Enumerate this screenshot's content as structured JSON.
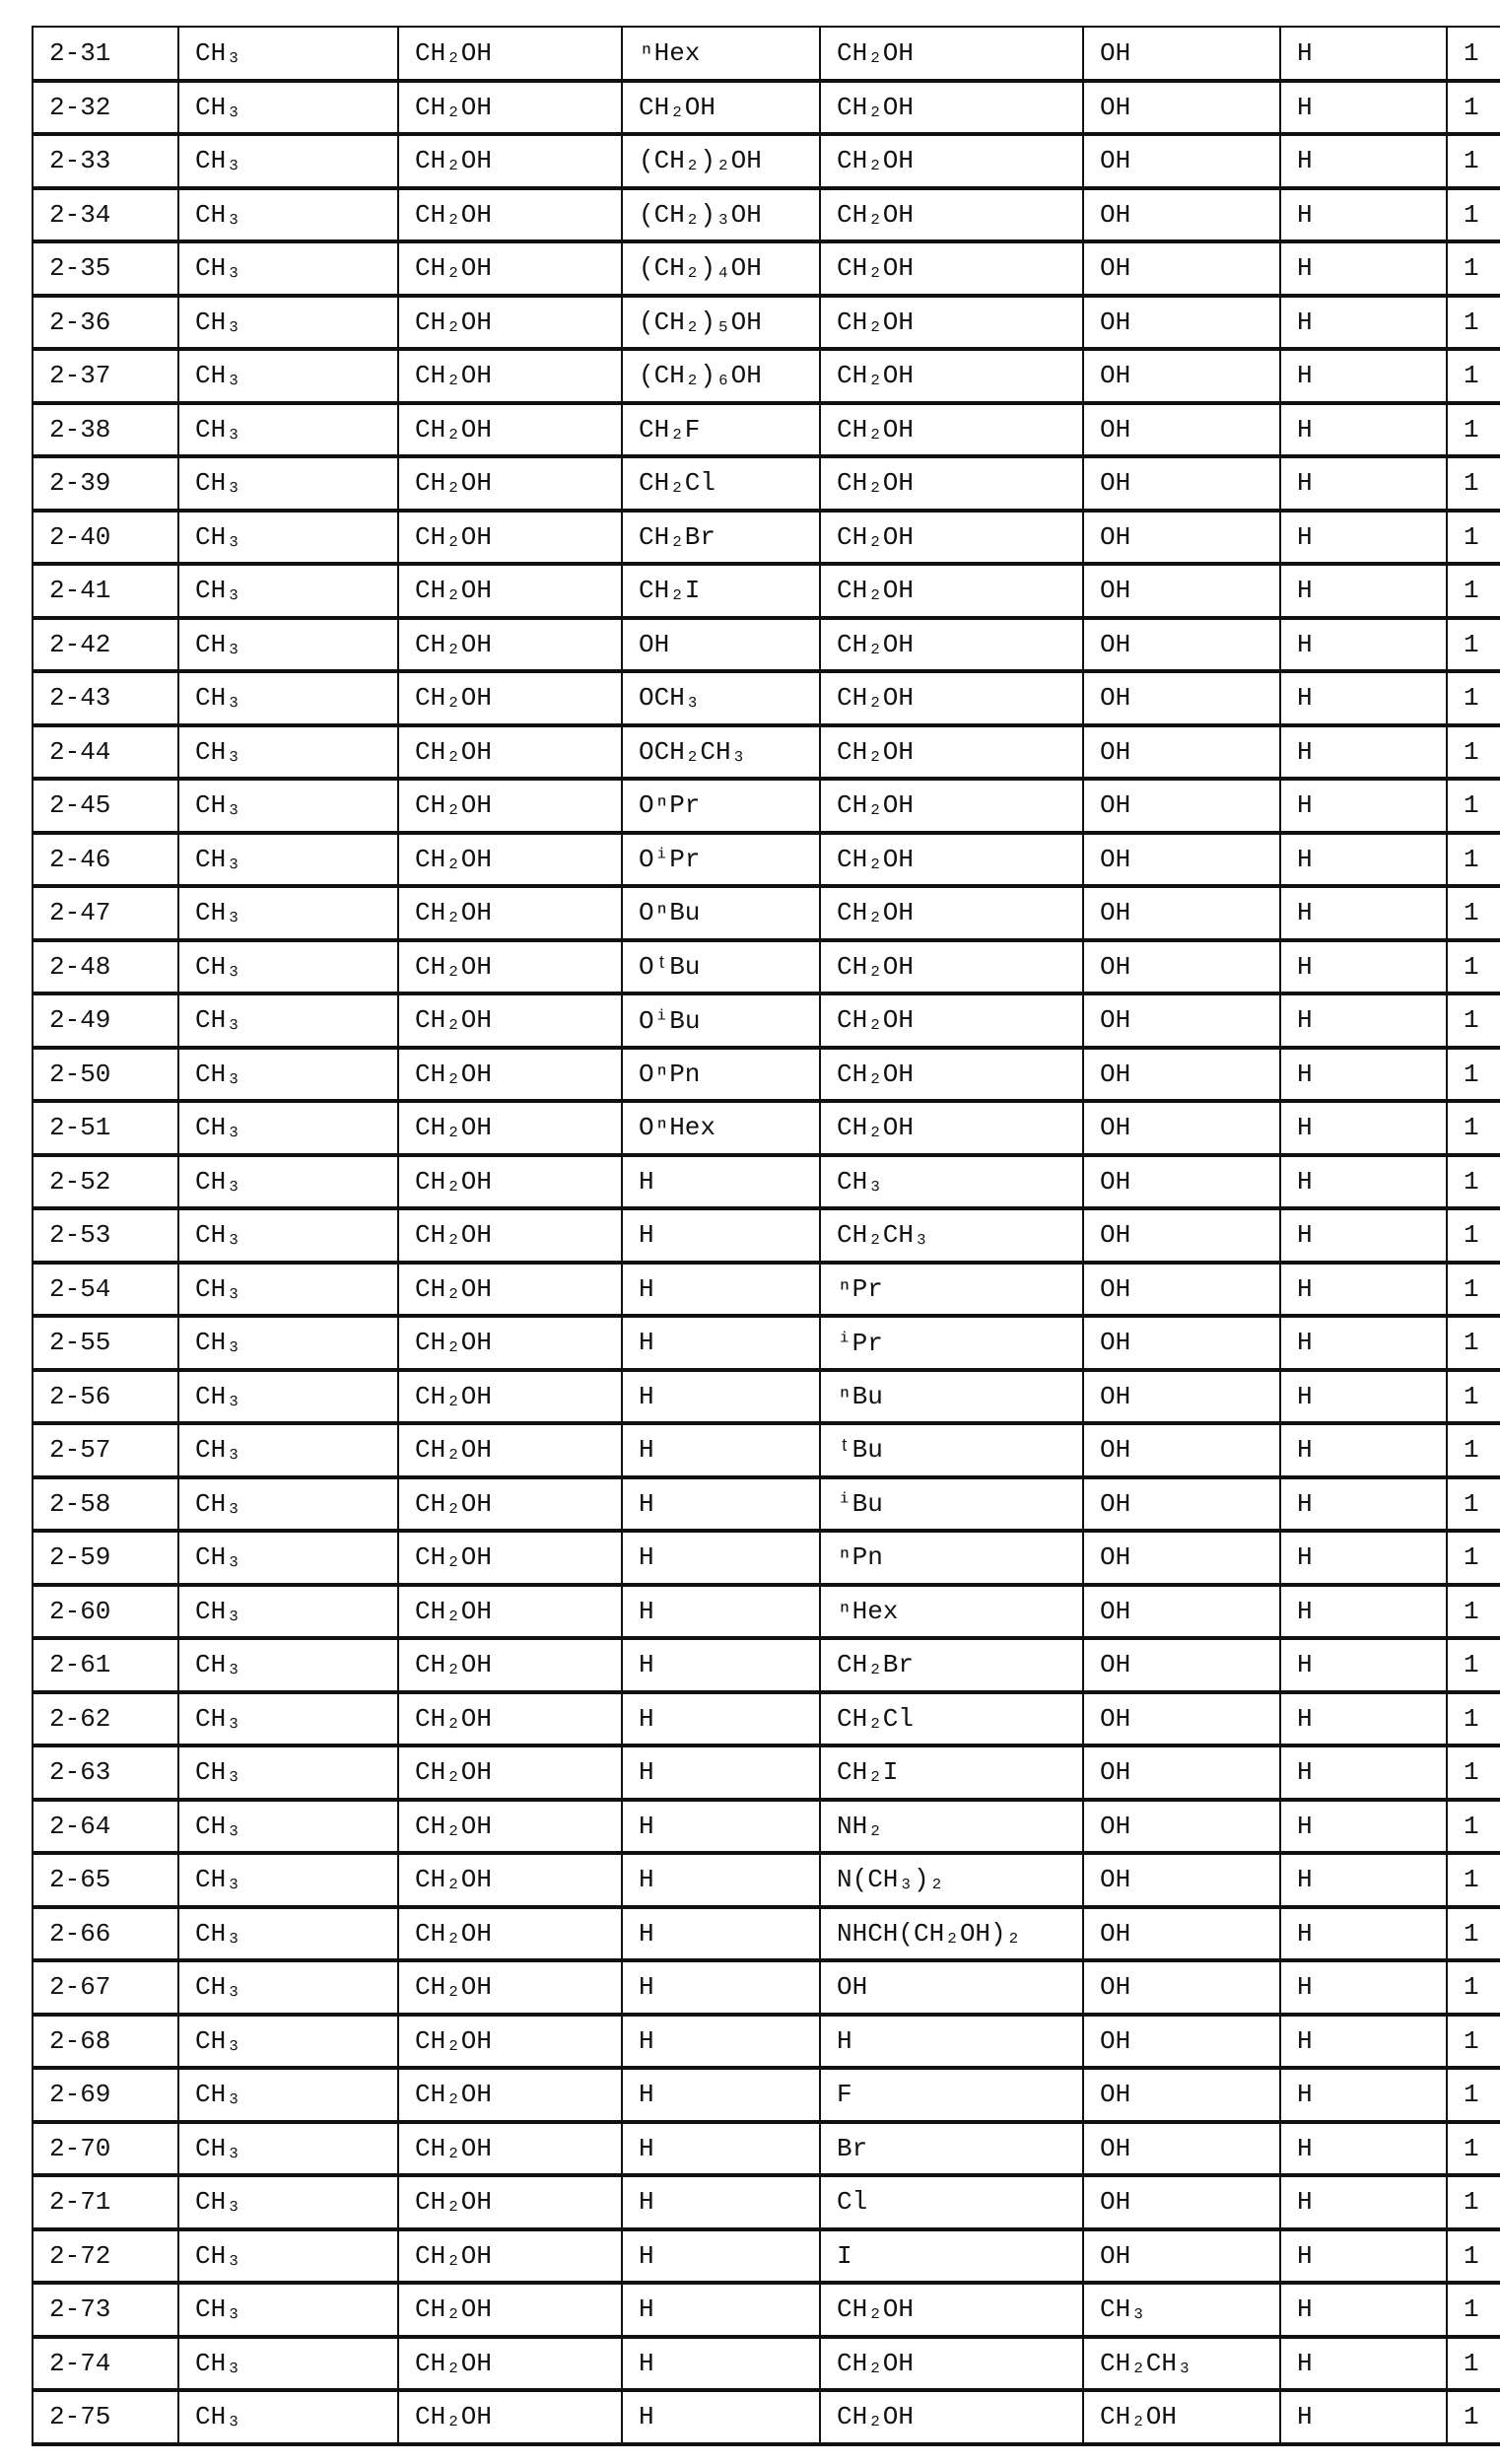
{
  "table": {
    "rows": [
      [
        "2-31",
        "CH₃",
        "CH₂OH",
        "ⁿHex",
        "CH₂OH",
        "OH",
        "H",
        "1"
      ],
      [
        "2-32",
        "CH₃",
        "CH₂OH",
        "CH₂OH",
        "CH₂OH",
        "OH",
        "H",
        "1"
      ],
      [
        "2-33",
        "CH₃",
        "CH₂OH",
        "(CH₂)₂OH",
        "CH₂OH",
        "OH",
        "H",
        "1"
      ],
      [
        "2-34",
        "CH₃",
        "CH₂OH",
        "(CH₂)₃OH",
        "CH₂OH",
        "OH",
        "H",
        "1"
      ],
      [
        "2-35",
        "CH₃",
        "CH₂OH",
        "(CH₂)₄OH",
        "CH₂OH",
        "OH",
        "H",
        "1"
      ],
      [
        "2-36",
        "CH₃",
        "CH₂OH",
        "(CH₂)₅OH",
        "CH₂OH",
        "OH",
        "H",
        "1"
      ],
      [
        "2-37",
        "CH₃",
        "CH₂OH",
        "(CH₂)₆OH",
        "CH₂OH",
        "OH",
        "H",
        "1"
      ],
      [
        "2-38",
        "CH₃",
        "CH₂OH",
        "CH₂F",
        "CH₂OH",
        "OH",
        "H",
        "1"
      ],
      [
        "2-39",
        "CH₃",
        "CH₂OH",
        "CH₂Cl",
        "CH₂OH",
        "OH",
        "H",
        "1"
      ],
      [
        "2-40",
        "CH₃",
        "CH₂OH",
        "CH₂Br",
        "CH₂OH",
        "OH",
        "H",
        "1"
      ],
      [
        "2-41",
        "CH₃",
        "CH₂OH",
        "CH₂I",
        "CH₂OH",
        "OH",
        "H",
        "1"
      ],
      [
        "2-42",
        "CH₃",
        "CH₂OH",
        "OH",
        "CH₂OH",
        "OH",
        "H",
        "1"
      ],
      [
        "2-43",
        "CH₃",
        "CH₂OH",
        "OCH₃",
        "CH₂OH",
        "OH",
        "H",
        "1"
      ],
      [
        "2-44",
        "CH₃",
        "CH₂OH",
        "OCH₂CH₃",
        "CH₂OH",
        "OH",
        "H",
        "1"
      ],
      [
        "2-45",
        "CH₃",
        "CH₂OH",
        "OⁿPr",
        "CH₂OH",
        "OH",
        "H",
        "1"
      ],
      [
        "2-46",
        "CH₃",
        "CH₂OH",
        "OⁱPr",
        "CH₂OH",
        "OH",
        "H",
        "1"
      ],
      [
        "2-47",
        "CH₃",
        "CH₂OH",
        "OⁿBu",
        "CH₂OH",
        "OH",
        "H",
        "1"
      ],
      [
        "2-48",
        "CH₃",
        "CH₂OH",
        "OᵗBu",
        "CH₂OH",
        "OH",
        "H",
        "1"
      ],
      [
        "2-49",
        "CH₃",
        "CH₂OH",
        "OⁱBu",
        "CH₂OH",
        "OH",
        "H",
        "1"
      ],
      [
        "2-50",
        "CH₃",
        "CH₂OH",
        "OⁿPn",
        "CH₂OH",
        "OH",
        "H",
        "1"
      ],
      [
        "2-51",
        "CH₃",
        "CH₂OH",
        "OⁿHex",
        "CH₂OH",
        "OH",
        "H",
        "1"
      ],
      [
        "2-52",
        "CH₃",
        "CH₂OH",
        "H",
        "CH₃",
        "OH",
        "H",
        "1"
      ],
      [
        "2-53",
        "CH₃",
        "CH₂OH",
        "H",
        "CH₂CH₃",
        "OH",
        "H",
        "1"
      ],
      [
        "2-54",
        "CH₃",
        "CH₂OH",
        "H",
        "ⁿPr",
        "OH",
        "H",
        "1"
      ],
      [
        "2-55",
        "CH₃",
        "CH₂OH",
        "H",
        "ⁱPr",
        "OH",
        "H",
        "1"
      ],
      [
        "2-56",
        "CH₃",
        "CH₂OH",
        "H",
        "ⁿBu",
        "OH",
        "H",
        "1"
      ],
      [
        "2-57",
        "CH₃",
        "CH₂OH",
        "H",
        "ᵗBu",
        "OH",
        "H",
        "1"
      ],
      [
        "2-58",
        "CH₃",
        "CH₂OH",
        "H",
        "ⁱBu",
        "OH",
        "H",
        "1"
      ],
      [
        "2-59",
        "CH₃",
        "CH₂OH",
        "H",
        "ⁿPn",
        "OH",
        "H",
        "1"
      ],
      [
        "2-60",
        "CH₃",
        "CH₂OH",
        "H",
        "ⁿHex",
        "OH",
        "H",
        "1"
      ],
      [
        "2-61",
        "CH₃",
        "CH₂OH",
        "H",
        "CH₂Br",
        "OH",
        "H",
        "1"
      ],
      [
        "2-62",
        "CH₃",
        "CH₂OH",
        "H",
        "CH₂Cl",
        "OH",
        "H",
        "1"
      ],
      [
        "2-63",
        "CH₃",
        "CH₂OH",
        "H",
        "CH₂I",
        "OH",
        "H",
        "1"
      ],
      [
        "2-64",
        "CH₃",
        "CH₂OH",
        "H",
        "NH₂",
        "OH",
        "H",
        "1"
      ],
      [
        "2-65",
        "CH₃",
        "CH₂OH",
        "H",
        "N(CH₃)₂",
        "OH",
        "H",
        "1"
      ],
      [
        "2-66",
        "CH₃",
        "CH₂OH",
        "H",
        "NHCH(CH₂OH)₂",
        "OH",
        "H",
        "1"
      ],
      [
        "2-67",
        "CH₃",
        "CH₂OH",
        "H",
        "OH",
        "OH",
        "H",
        "1"
      ],
      [
        "2-68",
        "CH₃",
        "CH₂OH",
        "H",
        "H",
        "OH",
        "H",
        "1"
      ],
      [
        "2-69",
        "CH₃",
        "CH₂OH",
        "H",
        "F",
        "OH",
        "H",
        "1"
      ],
      [
        "2-70",
        "CH₃",
        "CH₂OH",
        "H",
        "Br",
        "OH",
        "H",
        "1"
      ],
      [
        "2-71",
        "CH₃",
        "CH₂OH",
        "H",
        "Cl",
        "OH",
        "H",
        "1"
      ],
      [
        "2-72",
        "CH₃",
        "CH₂OH",
        "H",
        "I",
        "OH",
        "H",
        "1"
      ],
      [
        "2-73",
        "CH₃",
        "CH₂OH",
        "H",
        "CH₂OH",
        "CH₃",
        "H",
        "1"
      ],
      [
        "2-74",
        "CH₃",
        "CH₂OH",
        "H",
        "CH₂OH",
        "CH₂CH₃",
        "H",
        "1"
      ],
      [
        "2-75",
        "CH₃",
        "CH₂OH",
        "H",
        "CH₂OH",
        "CH₂OH",
        "H",
        "1"
      ]
    ]
  }
}
